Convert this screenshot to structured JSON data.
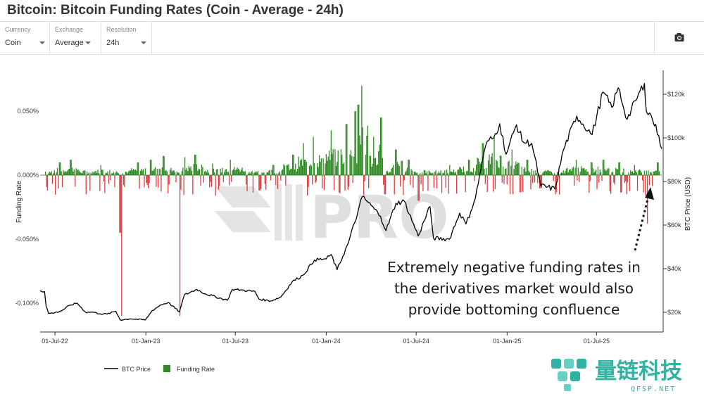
{
  "title": "Bitcoin: Bitcoin Funding Rates (Coin - Average - 24h)",
  "controls": [
    {
      "label": "Currency",
      "value": "Coin"
    },
    {
      "label": "Exchange",
      "value": "Average"
    },
    {
      "label": "Resolution",
      "value": "24h"
    }
  ],
  "icons": {
    "camera": "camera-icon"
  },
  "chart_data": {
    "type": "bar+line",
    "x_ticks": [
      "01-Jul-22",
      "01-Jan-23",
      "01-Jul-23",
      "01-Jan-24",
      "01-Jul-24",
      "01-Jan-25",
      "01-Jul-25"
    ],
    "x_range": [
      "2022-06-01",
      "2025-11-10"
    ],
    "y_left": {
      "label": "Funding Rate",
      "ticks": [
        "0.050%",
        "0.000%",
        "-0.050%",
        "-0.100%"
      ],
      "tick_values": [
        0.05,
        0,
        -0.05,
        -0.1
      ],
      "range": [
        -0.115,
        0.075
      ],
      "unit": "%"
    },
    "y_right": {
      "label": "BTC Price (USD)",
      "ticks": [
        "$120k",
        "$100k",
        "$80k",
        "$60k",
        "$40k",
        "$20k"
      ],
      "tick_values": [
        120000,
        100000,
        80000,
        60000,
        40000,
        20000
      ],
      "range": [
        8000,
        130000
      ],
      "unit": "USD"
    },
    "series": [
      {
        "name": "BTC Price",
        "color": "#000000",
        "axis": "right",
        "points": [
          [
            "2022-06-01",
            30000
          ],
          [
            "2022-06-10",
            29500
          ],
          [
            "2022-06-13",
            23000
          ],
          [
            "2022-06-18",
            19500
          ],
          [
            "2022-07-01",
            19800
          ],
          [
            "2022-07-15",
            20800
          ],
          [
            "2022-08-01",
            23300
          ],
          [
            "2022-08-15",
            24200
          ],
          [
            "2022-09-01",
            20000
          ],
          [
            "2022-09-15",
            20100
          ],
          [
            "2022-10-01",
            19300
          ],
          [
            "2022-10-15",
            19200
          ],
          [
            "2022-11-01",
            20500
          ],
          [
            "2022-11-08",
            17500
          ],
          [
            "2022-11-10",
            16500
          ],
          [
            "2022-12-01",
            17000
          ],
          [
            "2022-12-31",
            16500
          ],
          [
            "2023-01-14",
            20800
          ],
          [
            "2023-02-01",
            23500
          ],
          [
            "2023-02-15",
            24500
          ],
          [
            "2023-03-10",
            20200
          ],
          [
            "2023-03-20",
            28000
          ],
          [
            "2023-04-14",
            30500
          ],
          [
            "2023-05-01",
            28500
          ],
          [
            "2023-06-15",
            25500
          ],
          [
            "2023-06-25",
            30500
          ],
          [
            "2023-07-15",
            30200
          ],
          [
            "2023-08-10",
            29500
          ],
          [
            "2023-08-18",
            26000
          ],
          [
            "2023-09-11",
            25200
          ],
          [
            "2023-10-01",
            27000
          ],
          [
            "2023-10-24",
            34000
          ],
          [
            "2023-11-15",
            37000
          ],
          [
            "2023-12-08",
            44000
          ],
          [
            "2024-01-01",
            44500
          ],
          [
            "2024-01-11",
            46500
          ],
          [
            "2024-01-23",
            39500
          ],
          [
            "2024-02-15",
            52000
          ],
          [
            "2024-03-05",
            66000
          ],
          [
            "2024-03-14",
            73000
          ],
          [
            "2024-04-01",
            69000
          ],
          [
            "2024-04-20",
            64000
          ],
          [
            "2024-05-01",
            57500
          ],
          [
            "2024-05-21",
            70000
          ],
          [
            "2024-06-07",
            71000
          ],
          [
            "2024-07-05",
            55000
          ],
          [
            "2024-07-29",
            68500
          ],
          [
            "2024-08-05",
            54000
          ],
          [
            "2024-09-06",
            53500
          ],
          [
            "2024-09-27",
            65500
          ],
          [
            "2024-10-10",
            60500
          ],
          [
            "2024-10-29",
            72500
          ],
          [
            "2024-11-12",
            89500
          ],
          [
            "2024-11-22",
            98500
          ],
          [
            "2024-12-05",
            100000
          ],
          [
            "2024-12-17",
            106500
          ],
          [
            "2024-12-30",
            92500
          ],
          [
            "2025-01-20",
            106000
          ],
          [
            "2025-02-03",
            98000
          ],
          [
            "2025-02-20",
            97500
          ],
          [
            "2025-03-10",
            78000
          ],
          [
            "2025-04-08",
            76500
          ],
          [
            "2025-04-25",
            94500
          ],
          [
            "2025-05-22",
            110000
          ],
          [
            "2025-06-22",
            101500
          ],
          [
            "2025-07-14",
            121000
          ],
          [
            "2025-08-01",
            114000
          ],
          [
            "2025-08-14",
            123000
          ],
          [
            "2025-09-01",
            108500
          ],
          [
            "2025-09-18",
            117000
          ],
          [
            "2025-10-06",
            125000
          ],
          [
            "2025-10-10",
            112000
          ],
          [
            "2025-10-20",
            110000
          ],
          [
            "2025-11-04",
            101000
          ],
          [
            "2025-11-10",
            95000
          ]
        ]
      },
      {
        "name": "Funding Rate",
        "color": "#2e8b23",
        "negative_color": "#e03b3b",
        "axis": "left",
        "points": [
          [
            "2022-06-15",
            -0.012
          ],
          [
            "2022-07-10",
            0.01
          ],
          [
            "2022-08-01",
            0.012
          ],
          [
            "2022-09-01",
            -0.015
          ],
          [
            "2022-10-01",
            0.008
          ],
          [
            "2022-11-09",
            -0.045
          ],
          [
            "2022-11-12",
            -0.11
          ],
          [
            "2022-12-15",
            0.01
          ],
          [
            "2023-01-10",
            0.012
          ],
          [
            "2023-02-05",
            0.015
          ],
          [
            "2023-03-10",
            -0.11
          ],
          [
            "2023-03-20",
            0.014
          ],
          [
            "2023-04-10",
            0.016
          ],
          [
            "2023-05-15",
            0.009
          ],
          [
            "2023-06-20",
            0.012
          ],
          [
            "2023-08-18",
            -0.012
          ],
          [
            "2023-09-15",
            0.008
          ],
          [
            "2023-10-25",
            0.016
          ],
          [
            "2023-11-15",
            0.025
          ],
          [
            "2023-12-05",
            0.03
          ],
          [
            "2024-01-10",
            0.035
          ],
          [
            "2024-02-10",
            0.04
          ],
          [
            "2024-02-28",
            0.05
          ],
          [
            "2024-03-05",
            0.055
          ],
          [
            "2024-03-12",
            0.07
          ],
          [
            "2024-04-05",
            0.03
          ],
          [
            "2024-04-20",
            0.045
          ],
          [
            "2024-04-28",
            -0.015
          ],
          [
            "2024-05-20",
            0.02
          ],
          [
            "2024-06-15",
            0.012
          ],
          [
            "2024-07-05",
            -0.02
          ],
          [
            "2024-08-05",
            -0.01
          ],
          [
            "2024-09-06",
            0.008
          ],
          [
            "2024-10-15",
            0.012
          ],
          [
            "2024-11-12",
            0.025
          ],
          [
            "2024-12-05",
            0.03
          ],
          [
            "2025-01-10",
            0.02
          ],
          [
            "2025-02-10",
            0.012
          ],
          [
            "2025-03-10",
            -0.01
          ],
          [
            "2025-04-08",
            -0.015
          ],
          [
            "2025-05-20",
            0.012
          ],
          [
            "2025-06-20",
            0.01
          ],
          [
            "2025-07-14",
            0.012
          ],
          [
            "2025-08-15",
            0.01
          ],
          [
            "2025-09-15",
            0.008
          ],
          [
            "2025-10-11",
            -0.038
          ],
          [
            "2025-11-01",
            0.01
          ]
        ]
      }
    ],
    "legend": [
      {
        "label": "BTC Price",
        "kind": "line",
        "color": "#000000"
      },
      {
        "label": "Funding Rate",
        "kind": "square",
        "color": "#2e8b23"
      }
    ],
    "legend_position": "bottom-left",
    "annotations": [
      {
        "text": [
          "Extremely negative funding rates in",
          "the derivatives market would also",
          "provide bottoming confluence"
        ],
        "arrow": "dotted, pointing up to late 2025 funding spike"
      }
    ],
    "grid": false
  },
  "watermark": {
    "text": "PRO"
  },
  "logo": {
    "text": "量链科技",
    "sub": "QFSP.NET"
  }
}
